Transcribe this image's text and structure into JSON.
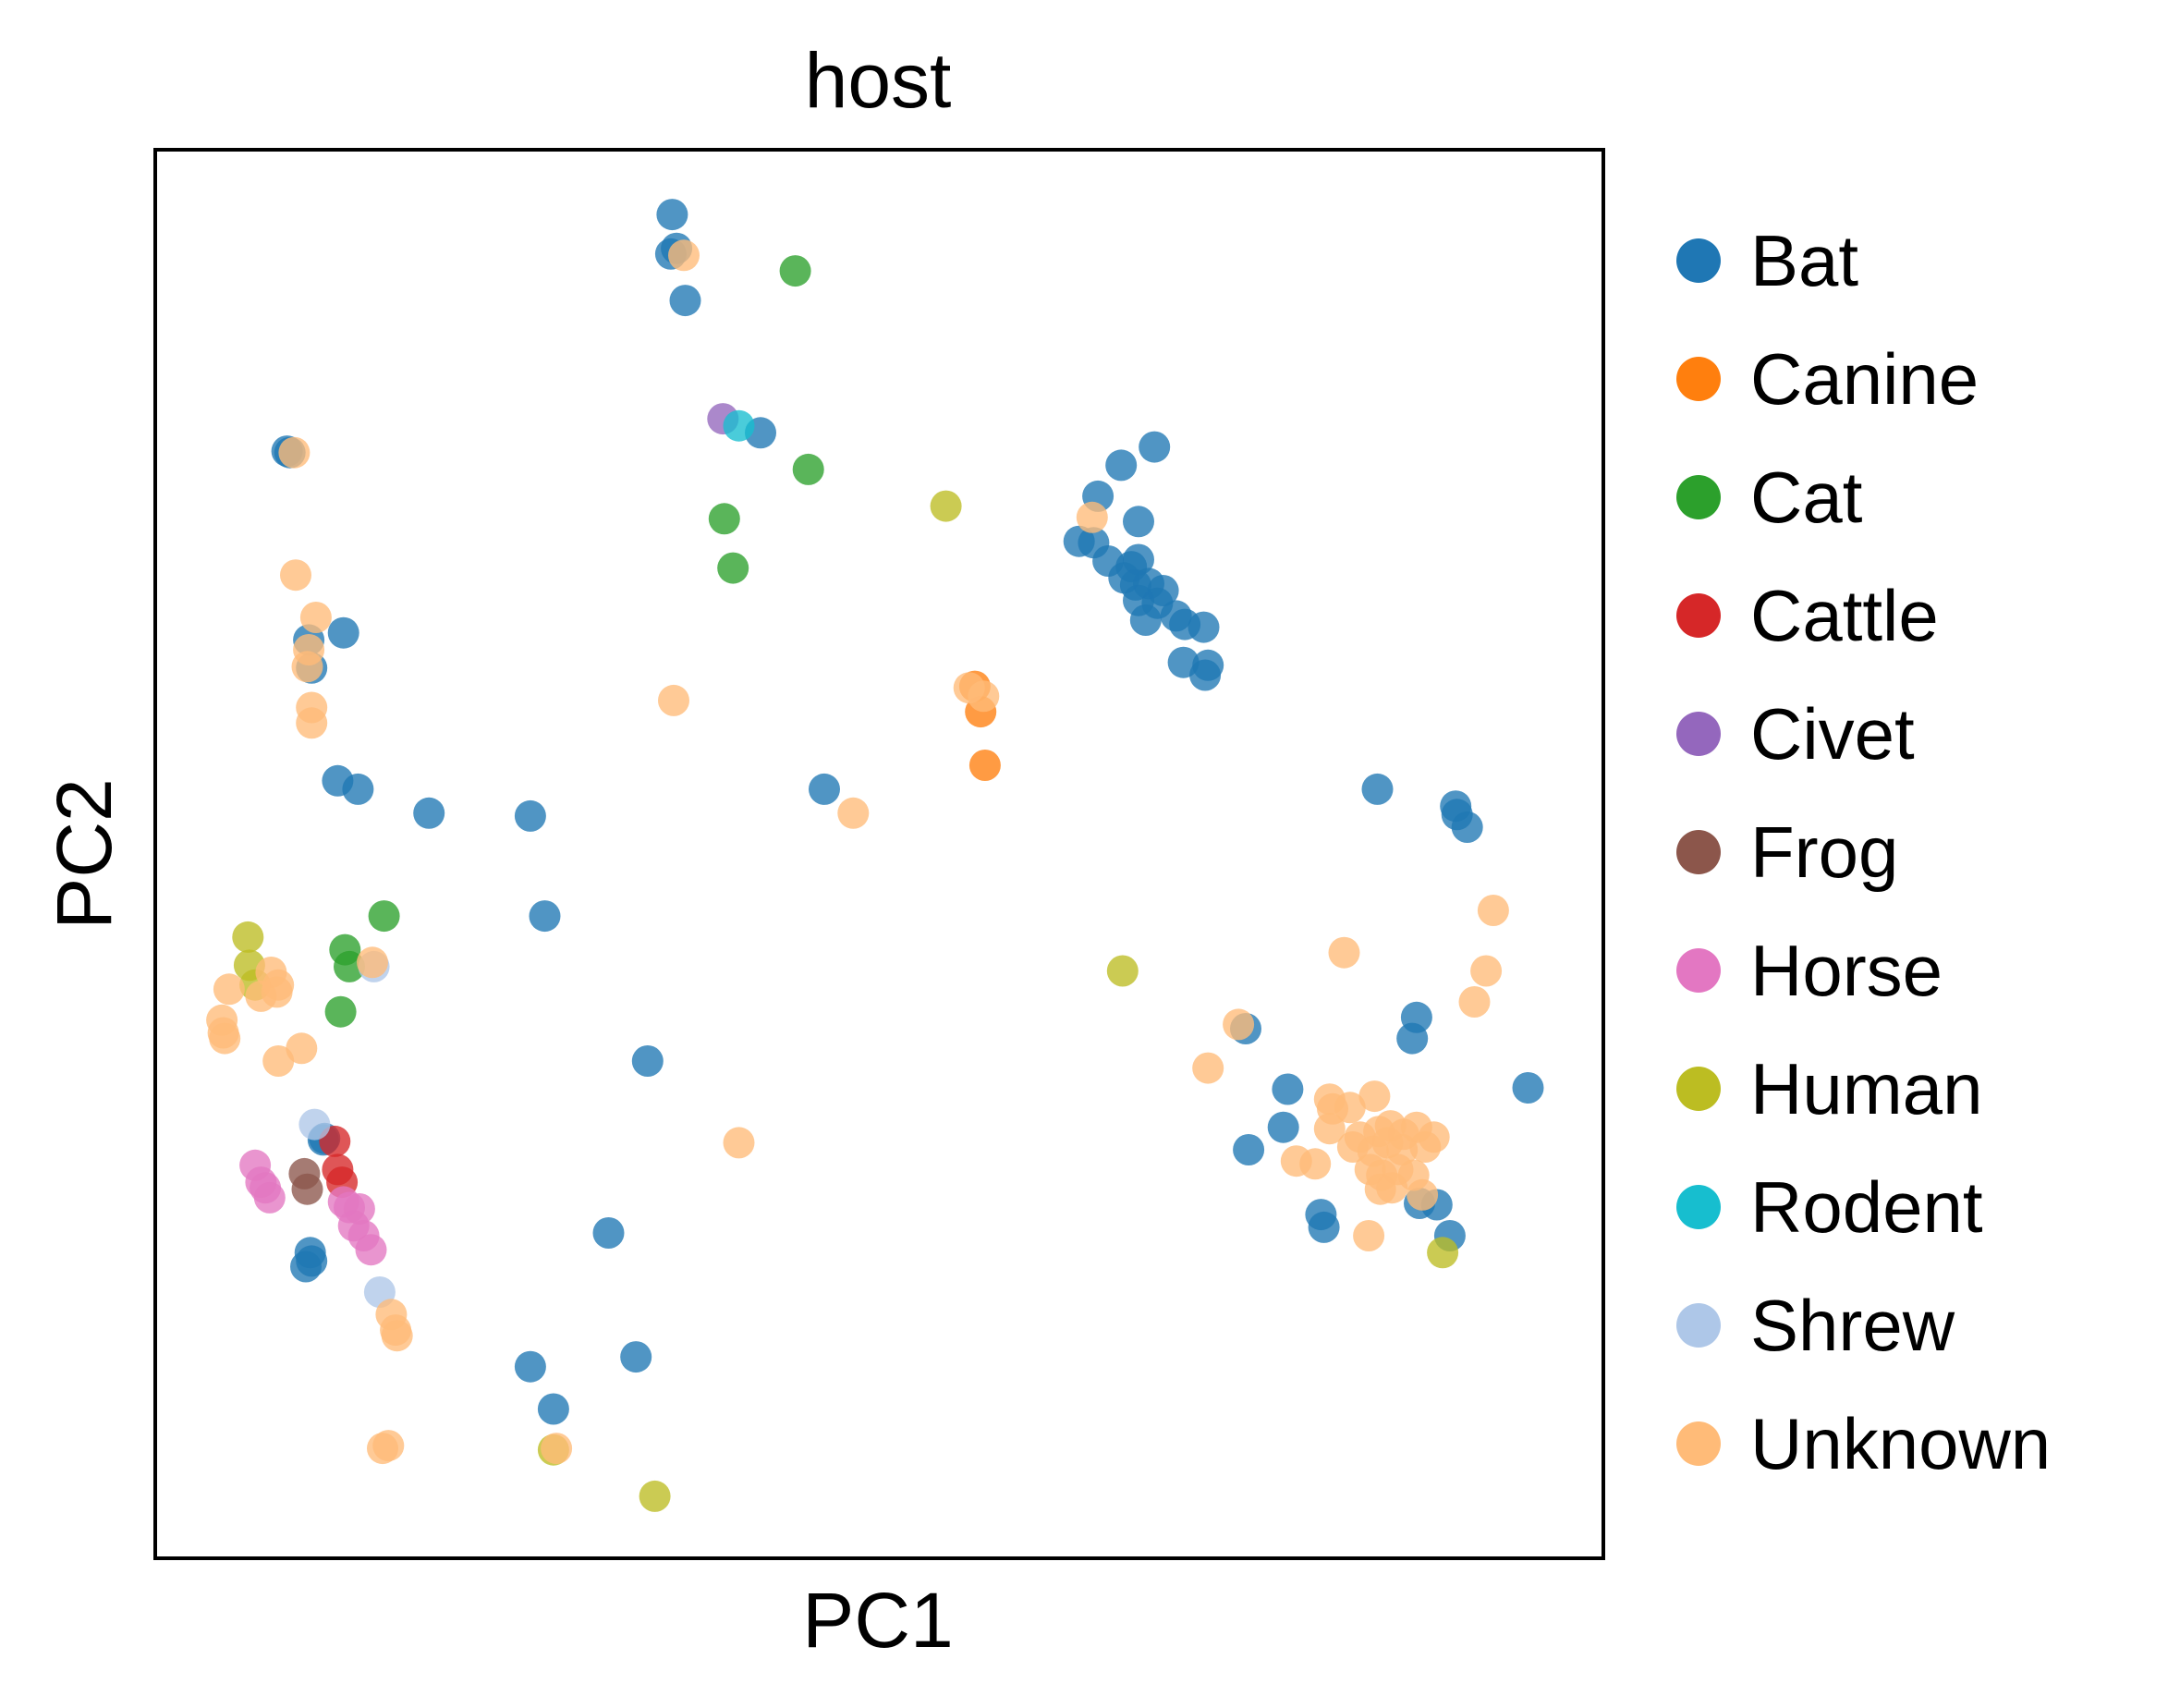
{
  "chart_data": {
    "type": "scatter",
    "title": "host",
    "xlabel": "PC1",
    "ylabel": "PC2",
    "xlim": [
      0,
      100
    ],
    "ylim": [
      0,
      100
    ],
    "ticks": "none",
    "grid": false,
    "legend_position": "right-outside",
    "series": [
      {
        "name": "Bat",
        "color": "#1f77b4",
        "points": [
          [
            35.7,
            95.4
          ],
          [
            35.6,
            92.6
          ],
          [
            36.0,
            93.0
          ],
          [
            36.6,
            89.3
          ],
          [
            41.8,
            79.9
          ],
          [
            9.1,
            78.6
          ],
          [
            9.3,
            78.5
          ],
          [
            13.0,
            65.7
          ],
          [
            10.6,
            65.2
          ],
          [
            10.8,
            63.2
          ],
          [
            12.6,
            55.2
          ],
          [
            14.0,
            54.6
          ],
          [
            18.9,
            52.9
          ],
          [
            25.9,
            52.7
          ],
          [
            26.9,
            45.6
          ],
          [
            34.0,
            35.3
          ],
          [
            31.3,
            23.1
          ],
          [
            11.6,
            29.7
          ],
          [
            10.7,
            21.7
          ],
          [
            10.8,
            21.1
          ],
          [
            10.4,
            20.7
          ],
          [
            25.9,
            13.6
          ],
          [
            27.5,
            10.6
          ],
          [
            33.2,
            14.3
          ],
          [
            11.7,
            29.8
          ],
          [
            46.2,
            54.6
          ],
          [
            66.7,
            77.6
          ],
          [
            65.1,
            75.4
          ],
          [
            69.0,
            78.9
          ],
          [
            67.9,
            73.6
          ],
          [
            63.8,
            72.2
          ],
          [
            64.8,
            72.1
          ],
          [
            65.8,
            70.8
          ],
          [
            67.4,
            70.4
          ],
          [
            67.9,
            70.9
          ],
          [
            66.9,
            69.6
          ],
          [
            67.7,
            69.1
          ],
          [
            68.6,
            69.2
          ],
          [
            69.6,
            68.7
          ],
          [
            67.9,
            68.0
          ],
          [
            69.2,
            67.8
          ],
          [
            70.5,
            66.9
          ],
          [
            68.4,
            66.6
          ],
          [
            71.1,
            66.3
          ],
          [
            72.4,
            66.1
          ],
          [
            71.0,
            63.6
          ],
          [
            72.7,
            63.4
          ],
          [
            72.5,
            62.7
          ],
          [
            84.4,
            54.6
          ],
          [
            89.8,
            53.4
          ],
          [
            89.9,
            52.8
          ],
          [
            90.6,
            51.9
          ],
          [
            87.1,
            38.4
          ],
          [
            86.8,
            36.9
          ],
          [
            94.8,
            33.4
          ],
          [
            75.3,
            37.6
          ],
          [
            78.2,
            33.3
          ],
          [
            77.9,
            30.6
          ],
          [
            75.5,
            29.0
          ],
          [
            80.5,
            24.4
          ],
          [
            80.7,
            23.5
          ],
          [
            87.3,
            25.2
          ],
          [
            88.5,
            25.1
          ],
          [
            89.4,
            22.9
          ]
        ]
      },
      {
        "name": "Canine",
        "color": "#ff7f0e",
        "points": [
          [
            56.6,
            61.9
          ],
          [
            57.0,
            60.1
          ],
          [
            57.3,
            56.3
          ]
        ]
      },
      {
        "name": "Cat",
        "color": "#2ca02c",
        "points": [
          [
            44.2,
            91.4
          ],
          [
            45.1,
            77.3
          ],
          [
            39.3,
            73.8
          ],
          [
            39.9,
            70.3
          ],
          [
            15.8,
            45.6
          ],
          [
            13.1,
            43.2
          ],
          [
            13.4,
            42.0
          ],
          [
            12.8,
            38.8
          ]
        ]
      },
      {
        "name": "Cattle",
        "color": "#d62728",
        "points": [
          [
            12.4,
            29.6
          ],
          [
            12.6,
            27.6
          ],
          [
            12.9,
            26.7
          ]
        ]
      },
      {
        "name": "Civet",
        "color": "#9467bd",
        "points": [
          [
            39.2,
            80.9
          ]
        ]
      },
      {
        "name": "Frog",
        "color": "#8c564b",
        "points": [
          [
            10.3,
            27.3
          ],
          [
            10.5,
            26.2
          ]
        ]
      },
      {
        "name": "Horse",
        "color": "#e377c2",
        "points": [
          [
            6.9,
            27.9
          ],
          [
            7.3,
            26.7
          ],
          [
            7.6,
            26.3
          ],
          [
            7.9,
            25.6
          ],
          [
            13.0,
            25.3
          ],
          [
            13.4,
            24.9
          ],
          [
            14.1,
            24.8
          ],
          [
            13.7,
            23.6
          ],
          [
            14.4,
            22.9
          ],
          [
            14.9,
            21.9
          ]
        ]
      },
      {
        "name": "Human",
        "color": "#bcbd22",
        "points": [
          [
            54.6,
            74.7
          ],
          [
            6.4,
            44.1
          ],
          [
            6.5,
            42.1
          ],
          [
            6.9,
            40.7
          ],
          [
            66.8,
            41.7
          ],
          [
            88.9,
            21.7
          ],
          [
            27.5,
            7.7
          ],
          [
            34.5,
            4.4
          ]
        ]
      },
      {
        "name": "Rodent",
        "color": "#17becf",
        "points": [
          [
            40.3,
            80.4
          ]
        ]
      },
      {
        "name": "Shrew",
        "color": "#aec7e8",
        "points": [
          [
            11.0,
            30.8
          ],
          [
            15.1,
            42.0
          ],
          [
            15.5,
            18.9
          ]
        ]
      },
      {
        "name": "Unknown",
        "color": "#ffbb78",
        "points": [
          [
            36.5,
            92.5
          ],
          [
            9.6,
            78.5
          ],
          [
            9.7,
            69.8
          ],
          [
            11.1,
            66.8
          ],
          [
            10.6,
            64.5
          ],
          [
            10.5,
            63.3
          ],
          [
            10.8,
            60.4
          ],
          [
            10.8,
            59.3
          ],
          [
            35.8,
            60.9
          ],
          [
            56.2,
            61.8
          ],
          [
            57.2,
            61.2
          ],
          [
            64.7,
            73.9
          ],
          [
            48.2,
            52.9
          ],
          [
            15.0,
            42.3
          ],
          [
            8.0,
            41.6
          ],
          [
            8.5,
            40.7
          ],
          [
            8.4,
            40.2
          ],
          [
            5.1,
            40.4
          ],
          [
            7.3,
            39.9
          ],
          [
            4.6,
            38.2
          ],
          [
            4.7,
            37.3
          ],
          [
            4.8,
            36.9
          ],
          [
            10.1,
            36.2
          ],
          [
            8.5,
            35.3
          ],
          [
            40.3,
            29.5
          ],
          [
            16.3,
            17.3
          ],
          [
            16.6,
            16.2
          ],
          [
            16.7,
            15.8
          ],
          [
            15.7,
            7.8
          ],
          [
            16.1,
            8.0
          ],
          [
            27.7,
            7.8
          ],
          [
            92.4,
            46.0
          ],
          [
            91.9,
            41.7
          ],
          [
            82.1,
            43.0
          ],
          [
            91.1,
            39.5
          ],
          [
            74.8,
            37.9
          ],
          [
            72.7,
            34.8
          ],
          [
            81.1,
            32.6
          ],
          [
            82.5,
            32.0
          ],
          [
            84.2,
            32.8
          ],
          [
            81.3,
            31.9
          ],
          [
            85.3,
            30.7
          ],
          [
            84.5,
            30.3
          ],
          [
            81.1,
            30.5
          ],
          [
            87.1,
            30.6
          ],
          [
            83.2,
            29.9
          ],
          [
            86.2,
            30.1
          ],
          [
            85.1,
            29.5
          ],
          [
            88.3,
            29.9
          ],
          [
            86.1,
            29.0
          ],
          [
            82.7,
            29.2
          ],
          [
            84.1,
            28.9
          ],
          [
            87.7,
            29.2
          ],
          [
            78.8,
            28.2
          ],
          [
            80.1,
            28.0
          ],
          [
            83.9,
            27.6
          ],
          [
            85.8,
            27.6
          ],
          [
            84.7,
            27.2
          ],
          [
            86.9,
            27.2
          ],
          [
            84.6,
            26.2
          ],
          [
            87.5,
            25.8
          ],
          [
            85.4,
            26.3
          ],
          [
            83.8,
            22.9
          ]
        ]
      }
    ]
  }
}
